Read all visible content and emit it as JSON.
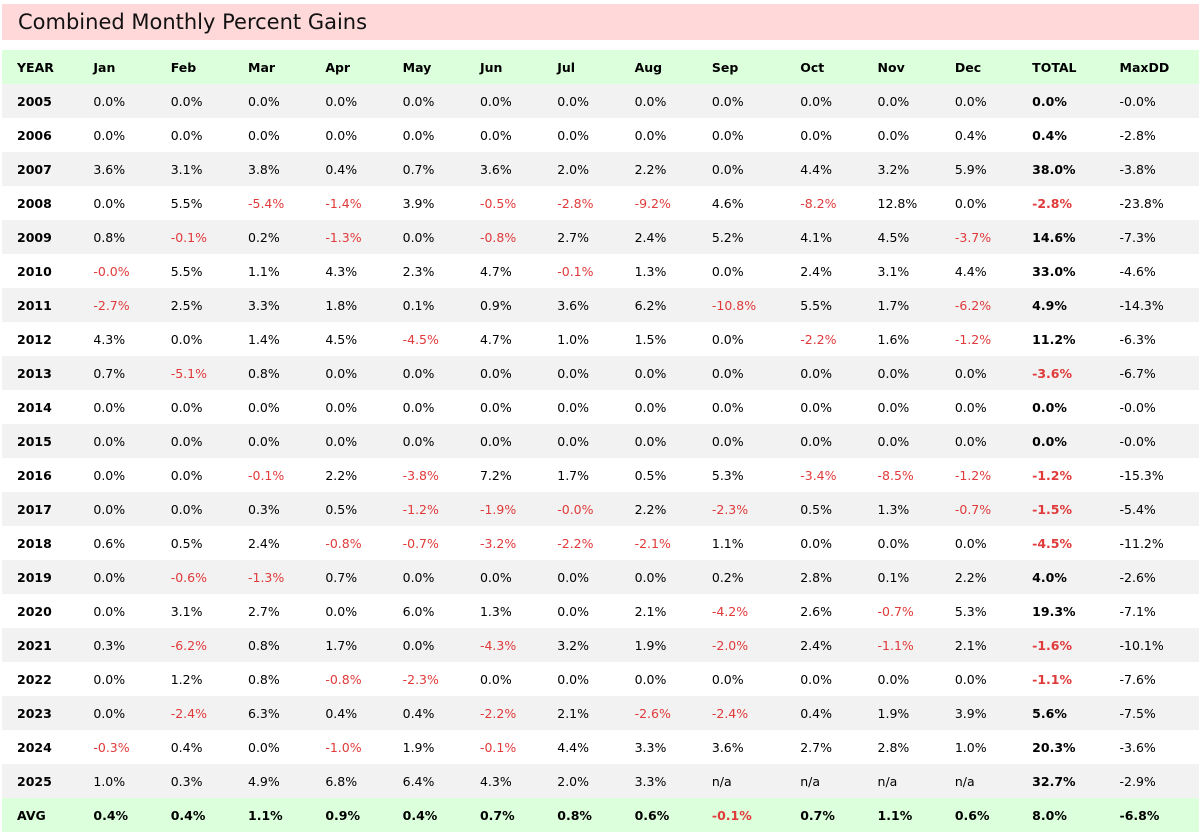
{
  "title": "Combined Monthly Percent Gains",
  "columns": [
    "YEAR",
    "Jan",
    "Feb",
    "Mar",
    "Apr",
    "May",
    "Jun",
    "Jul",
    "Aug",
    "Sep",
    "Oct",
    "Nov",
    "Dec",
    "TOTAL",
    "MaxDD"
  ],
  "rows": [
    [
      "2005",
      "0.0%",
      "0.0%",
      "0.0%",
      "0.0%",
      "0.0%",
      "0.0%",
      "0.0%",
      "0.0%",
      "0.0%",
      "0.0%",
      "0.0%",
      "0.0%",
      "0.0%",
      "-0.0%"
    ],
    [
      "2006",
      "0.0%",
      "0.0%",
      "0.0%",
      "0.0%",
      "0.0%",
      "0.0%",
      "0.0%",
      "0.0%",
      "0.0%",
      "0.0%",
      "0.0%",
      "0.4%",
      "0.4%",
      "-2.8%"
    ],
    [
      "2007",
      "3.6%",
      "3.1%",
      "3.8%",
      "0.4%",
      "0.7%",
      "3.6%",
      "2.0%",
      "2.2%",
      "0.0%",
      "4.4%",
      "3.2%",
      "5.9%",
      "38.0%",
      "-3.8%"
    ],
    [
      "2008",
      "0.0%",
      "5.5%",
      "-5.4%",
      "-1.4%",
      "3.9%",
      "-0.5%",
      "-2.8%",
      "-9.2%",
      "4.6%",
      "-8.2%",
      "12.8%",
      "0.0%",
      "-2.8%",
      "-23.8%"
    ],
    [
      "2009",
      "0.8%",
      "-0.1%",
      "0.2%",
      "-1.3%",
      "0.0%",
      "-0.8%",
      "2.7%",
      "2.4%",
      "5.2%",
      "4.1%",
      "4.5%",
      "-3.7%",
      "14.6%",
      "-7.3%"
    ],
    [
      "2010",
      "-0.0%",
      "5.5%",
      "1.1%",
      "4.3%",
      "2.3%",
      "4.7%",
      "-0.1%",
      "1.3%",
      "0.0%",
      "2.4%",
      "3.1%",
      "4.4%",
      "33.0%",
      "-4.6%"
    ],
    [
      "2011",
      "-2.7%",
      "2.5%",
      "3.3%",
      "1.8%",
      "0.1%",
      "0.9%",
      "3.6%",
      "6.2%",
      "-10.8%",
      "5.5%",
      "1.7%",
      "-6.2%",
      "4.9%",
      "-14.3%"
    ],
    [
      "2012",
      "4.3%",
      "0.0%",
      "1.4%",
      "4.5%",
      "-4.5%",
      "4.7%",
      "1.0%",
      "1.5%",
      "0.0%",
      "-2.2%",
      "1.6%",
      "-1.2%",
      "11.2%",
      "-6.3%"
    ],
    [
      "2013",
      "0.7%",
      "-5.1%",
      "0.8%",
      "0.0%",
      "0.0%",
      "0.0%",
      "0.0%",
      "0.0%",
      "0.0%",
      "0.0%",
      "0.0%",
      "0.0%",
      "-3.6%",
      "-6.7%"
    ],
    [
      "2014",
      "0.0%",
      "0.0%",
      "0.0%",
      "0.0%",
      "0.0%",
      "0.0%",
      "0.0%",
      "0.0%",
      "0.0%",
      "0.0%",
      "0.0%",
      "0.0%",
      "0.0%",
      "-0.0%"
    ],
    [
      "2015",
      "0.0%",
      "0.0%",
      "0.0%",
      "0.0%",
      "0.0%",
      "0.0%",
      "0.0%",
      "0.0%",
      "0.0%",
      "0.0%",
      "0.0%",
      "0.0%",
      "0.0%",
      "-0.0%"
    ],
    [
      "2016",
      "0.0%",
      "0.0%",
      "-0.1%",
      "2.2%",
      "-3.8%",
      "7.2%",
      "1.7%",
      "0.5%",
      "5.3%",
      "-3.4%",
      "-8.5%",
      "-1.2%",
      "-1.2%",
      "-15.3%"
    ],
    [
      "2017",
      "0.0%",
      "0.0%",
      "0.3%",
      "0.5%",
      "-1.2%",
      "-1.9%",
      "-0.0%",
      "2.2%",
      "-2.3%",
      "0.5%",
      "1.3%",
      "-0.7%",
      "-1.5%",
      "-5.4%"
    ],
    [
      "2018",
      "0.6%",
      "0.5%",
      "2.4%",
      "-0.8%",
      "-0.7%",
      "-3.2%",
      "-2.2%",
      "-2.1%",
      "1.1%",
      "0.0%",
      "0.0%",
      "0.0%",
      "-4.5%",
      "-11.2%"
    ],
    [
      "2019",
      "0.0%",
      "-0.6%",
      "-1.3%",
      "0.7%",
      "0.0%",
      "0.0%",
      "0.0%",
      "0.0%",
      "0.2%",
      "2.8%",
      "0.1%",
      "2.2%",
      "4.0%",
      "-2.6%"
    ],
    [
      "2020",
      "0.0%",
      "3.1%",
      "2.7%",
      "0.0%",
      "6.0%",
      "1.3%",
      "0.0%",
      "2.1%",
      "-4.2%",
      "2.6%",
      "-0.7%",
      "5.3%",
      "19.3%",
      "-7.1%"
    ],
    [
      "2021",
      "0.3%",
      "-6.2%",
      "0.8%",
      "1.7%",
      "0.0%",
      "-4.3%",
      "3.2%",
      "1.9%",
      "-2.0%",
      "2.4%",
      "-1.1%",
      "2.1%",
      "-1.6%",
      "-10.1%"
    ],
    [
      "2022",
      "0.0%",
      "1.2%",
      "0.8%",
      "-0.8%",
      "-2.3%",
      "0.0%",
      "0.0%",
      "0.0%",
      "0.0%",
      "0.0%",
      "0.0%",
      "0.0%",
      "-1.1%",
      "-7.6%"
    ],
    [
      "2023",
      "0.0%",
      "-2.4%",
      "6.3%",
      "0.4%",
      "0.4%",
      "-2.2%",
      "2.1%",
      "-2.6%",
      "-2.4%",
      "0.4%",
      "1.9%",
      "3.9%",
      "5.6%",
      "-7.5%"
    ],
    [
      "2024",
      "-0.3%",
      "0.4%",
      "0.0%",
      "-1.0%",
      "1.9%",
      "-0.1%",
      "4.4%",
      "3.3%",
      "3.6%",
      "2.7%",
      "2.8%",
      "1.0%",
      "20.3%",
      "-3.6%"
    ],
    [
      "2025",
      "1.0%",
      "0.3%",
      "4.9%",
      "6.8%",
      "6.4%",
      "4.3%",
      "2.0%",
      "3.3%",
      "n/a",
      "n/a",
      "n/a",
      "n/a",
      "32.7%",
      "-2.9%"
    ]
  ],
  "footer": [
    "AVG",
    "0.4%",
    "0.4%",
    "1.1%",
    "0.9%",
    "0.4%",
    "0.7%",
    "0.8%",
    "0.6%",
    "-0.1%",
    "0.7%",
    "1.1%",
    "0.6%",
    "8.0%",
    "-6.8%"
  ],
  "colors": {
    "title_bg": "#ffd9d9",
    "header_bg": "#dcffdc",
    "row_alt_bg": "#f2f2f2",
    "negative_text": "#e03a3a"
  }
}
